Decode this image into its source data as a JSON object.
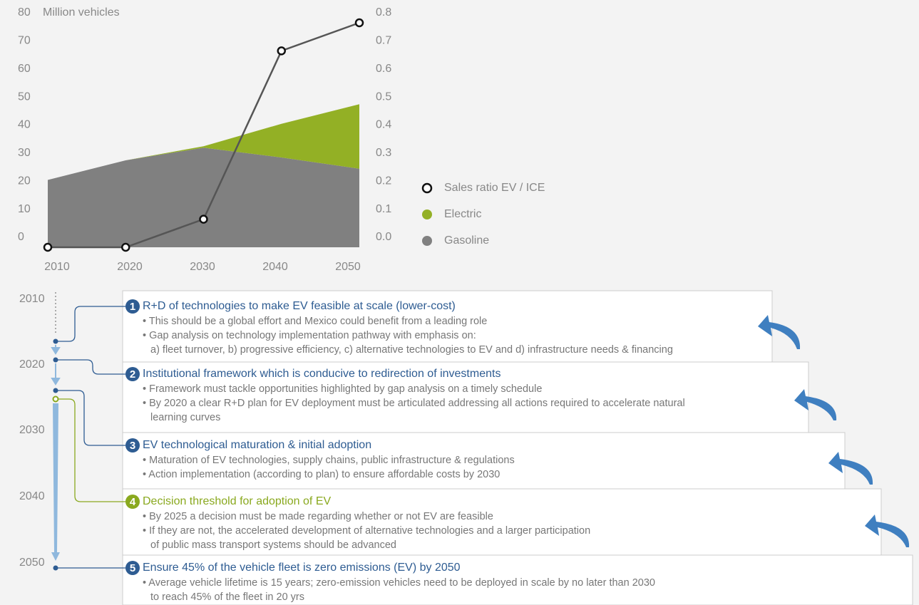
{
  "chart_data": {
    "type": "stacked-area-line",
    "y_label": "Million vehicles",
    "x": [
      2010,
      2020,
      2030,
      2040,
      2050
    ],
    "xlim": [
      2010,
      2050
    ],
    "xticks": [
      2010,
      2020,
      2030,
      2040,
      2050
    ],
    "ylim": [
      0,
      80
    ],
    "yticks": [
      0,
      10,
      20,
      30,
      40,
      50,
      60,
      70,
      80
    ],
    "y2lim": [
      0,
      0.8
    ],
    "y2ticks": [
      {
        "value": 0,
        "label": "0.0"
      },
      0.1,
      0.2,
      0.3,
      0.4,
      0.5,
      0.6,
      0.7,
      0.8
    ],
    "series": [
      {
        "name": "Gasoline",
        "color": "#808080",
        "kind": "area",
        "values": [
          24,
          31,
          35.5,
          32,
          28
        ]
      },
      {
        "name": "Electric",
        "color": "#93b025",
        "kind": "area",
        "values": [
          0,
          0,
          0.5,
          12,
          23
        ]
      },
      {
        "name": "Sales ratio EV / ICE",
        "color": "#555555",
        "kind": "line",
        "axis": "y2",
        "values": [
          0,
          0,
          0.1,
          0.7,
          0.8
        ]
      }
    ]
  },
  "timeline": {
    "years": [
      "2010",
      "2020",
      "2030",
      "2040",
      "2050"
    ],
    "steps": [
      {
        "number": 1,
        "title": "R+D of technologies to make EV feasible at scale (lower-cost)",
        "bullets": [
          "• This should be a global effort and Mexico could benefit from a leading role",
          "• Gap analysis on technology implementation pathway with emphasis on:",
          "a) fleet turnover, b) progressive efficiency, c) alternative technologies to EV and d) infrastructure needs & financing"
        ]
      },
      {
        "number": 2,
        "title": "Institutional framework which is conducive to redirection of investments",
        "bullets": [
          "• Framework must tackle opportunities highlighted by gap analysis on a timely schedule",
          "• By 2020 a clear R+D plan for EV deployment must be articulated addressing all actions required to accelerate natural",
          "learning curves"
        ]
      },
      {
        "number": 3,
        "title": "EV technological maturation & initial adoption",
        "bullets": [
          "• Maturation of EV technologies, supply chains, public infrastructure & regulations",
          "• Action implementation (according to plan) to ensure affordable costs by 2030"
        ]
      },
      {
        "number": 4,
        "title": "Decision threshold for adoption of EV",
        "bullets": [
          "• By 2025 a decision must be made regarding whether or not EV are feasible",
          "• If they are not, the accelerated development of alternative technologies and a larger participation",
          "of public mass transport systems should be advanced"
        ]
      },
      {
        "number": 5,
        "title": "Ensure 45% of the vehicle fleet is zero emissions (EV) by 2050",
        "bullets": [
          "• Average vehicle lifetime is 15 years; zero-emission vehicles need to be deployed in scale by no later than 2030",
          "to reach 45% of the fleet in 20 yrs"
        ]
      }
    ]
  }
}
